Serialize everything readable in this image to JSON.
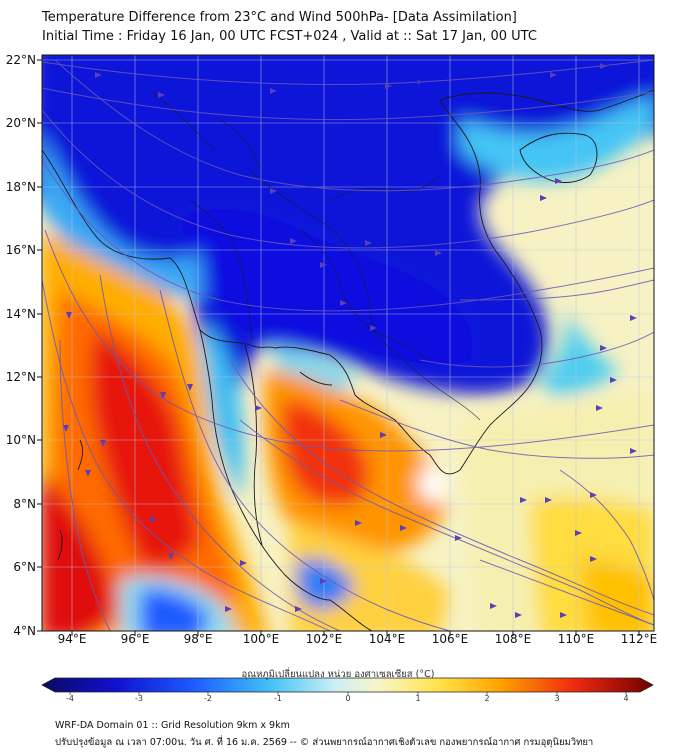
{
  "title_line1": "Temperature Difference from 23°C and Wind 500hPa- [Data Assimilation]",
  "title_line2": "Initial Time : Friday 16 Jan, 00 UTC FCST+024 , Valid at ::  Sat 17 Jan, 00 UTC",
  "lat_labels": [
    "22°N",
    "20°N",
    "18°N",
    "16°N",
    "14°N",
    "12°N",
    "10°N",
    "8°N",
    "6°N",
    "4°N"
  ],
  "lon_labels": [
    "94°E",
    "96°E",
    "98°E",
    "100°E",
    "102°E",
    "104°E",
    "106°E",
    "108°E",
    "110°E",
    "112°E"
  ],
  "colorbar": {
    "title": "อุณหภูมิเปลี่ยนแปลง หน่วย องศาเซลเซียส (°C)",
    "ticks": [
      "-4",
      "-3",
      "-2",
      "-1",
      "0",
      "1",
      "2",
      "3",
      "4"
    ]
  },
  "footer_line1": "WRF-DA Domain 01 :: Grid Resolution 9km x 9km",
  "footer_line2": "ปรับปรุงข้อมูล ณ เวลา 07:00น. วัน ศ. ที่ 16 ม.ค. 2569 -- © ส่วนพยากรณ์อากาศเชิงตัวเลข กองพยากรณ์อากาศ กรมอุตุนิยมวิทยา",
  "colors": {
    "cold_deep": "#0a10d8",
    "cold": "#1f6bff",
    "cool": "#45c8f2",
    "neutral": "#f7f4ce",
    "warm": "#ffd200",
    "hot": "#ff7a00",
    "very_hot": "#e81010",
    "streamline": "#6a55b8"
  }
}
